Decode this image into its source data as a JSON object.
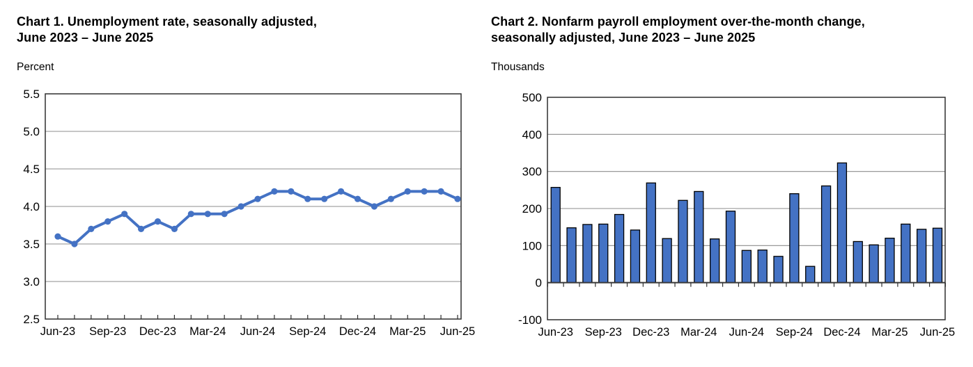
{
  "chart_data": [
    {
      "id": "chart1",
      "type": "line",
      "title_lines": [
        "Chart 1. Unemployment rate, seasonally adjusted,",
        "June 2023 – June 2025"
      ],
      "unit_label": "Percent",
      "x": [
        "Jun-23",
        "Jul-23",
        "Aug-23",
        "Sep-23",
        "Oct-23",
        "Nov-23",
        "Dec-23",
        "Jan-24",
        "Feb-24",
        "Mar-24",
        "Apr-24",
        "May-24",
        "Jun-24",
        "Jul-24",
        "Aug-24",
        "Sep-24",
        "Oct-24",
        "Nov-24",
        "Dec-24",
        "Jan-25",
        "Feb-25",
        "Mar-25",
        "Apr-25",
        "May-25",
        "Jun-25"
      ],
      "values": [
        3.6,
        3.5,
        3.7,
        3.8,
        3.9,
        3.7,
        3.8,
        3.7,
        3.9,
        3.9,
        3.9,
        4.0,
        4.1,
        4.2,
        4.2,
        4.1,
        4.1,
        4.2,
        4.1,
        4.0,
        4.1,
        4.2,
        4.2,
        4.2,
        4.1
      ],
      "ylim": [
        2.5,
        5.5
      ],
      "ytick_labels": [
        "5.5",
        "5.0",
        "4.5",
        "4.0",
        "3.5",
        "3.0",
        "2.5"
      ],
      "xtick_labels": [
        "Jun-23",
        "Sep-23",
        "Dec-23",
        "Mar-24",
        "Jun-24",
        "Sep-24",
        "Dec-24",
        "Mar-25",
        "Jun-25"
      ],
      "xtick_every": 3,
      "grid": true,
      "legend": "none",
      "line_color": "#4472C4",
      "marker_color": "#4472C4",
      "grid_color": "#8c8c8c",
      "axis_color": "#2e2e2e"
    },
    {
      "id": "chart2",
      "type": "bar",
      "title_lines": [
        "Chart 2. Nonfarm payroll employment over-the-month change,",
        "seasonally adjusted, June 2023 – June 2025"
      ],
      "unit_label": "Thousands",
      "x": [
        "Jun-23",
        "Jul-23",
        "Aug-23",
        "Sep-23",
        "Oct-23",
        "Nov-23",
        "Dec-23",
        "Jan-24",
        "Feb-24",
        "Mar-24",
        "Apr-24",
        "May-24",
        "Jun-24",
        "Jul-24",
        "Aug-24",
        "Sep-24",
        "Oct-24",
        "Nov-24",
        "Dec-24",
        "Jan-25",
        "Feb-25",
        "Mar-25",
        "Apr-25",
        "May-25",
        "Jun-25"
      ],
      "values": [
        257,
        148,
        157,
        158,
        184,
        142,
        269,
        119,
        222,
        246,
        118,
        193,
        87,
        88,
        71,
        240,
        44,
        261,
        323,
        111,
        102,
        120,
        158,
        144,
        147
      ],
      "ylim": [
        -100,
        500
      ],
      "ytick_labels": [
        "500",
        "400",
        "300",
        "200",
        "100",
        "0",
        "-100"
      ],
      "xtick_labels": [
        "Jun-23",
        "Sep-23",
        "Dec-23",
        "Mar-24",
        "Jun-24",
        "Sep-24",
        "Dec-24",
        "Mar-25",
        "Jun-25"
      ],
      "xtick_every": 3,
      "grid": true,
      "legend": "none",
      "bar_color": "#4472C4",
      "bar_border_color": "#000000",
      "grid_color": "#8c8c8c",
      "axis_color": "#2e2e2e",
      "zero_line_color": "#3a3a3a"
    }
  ]
}
